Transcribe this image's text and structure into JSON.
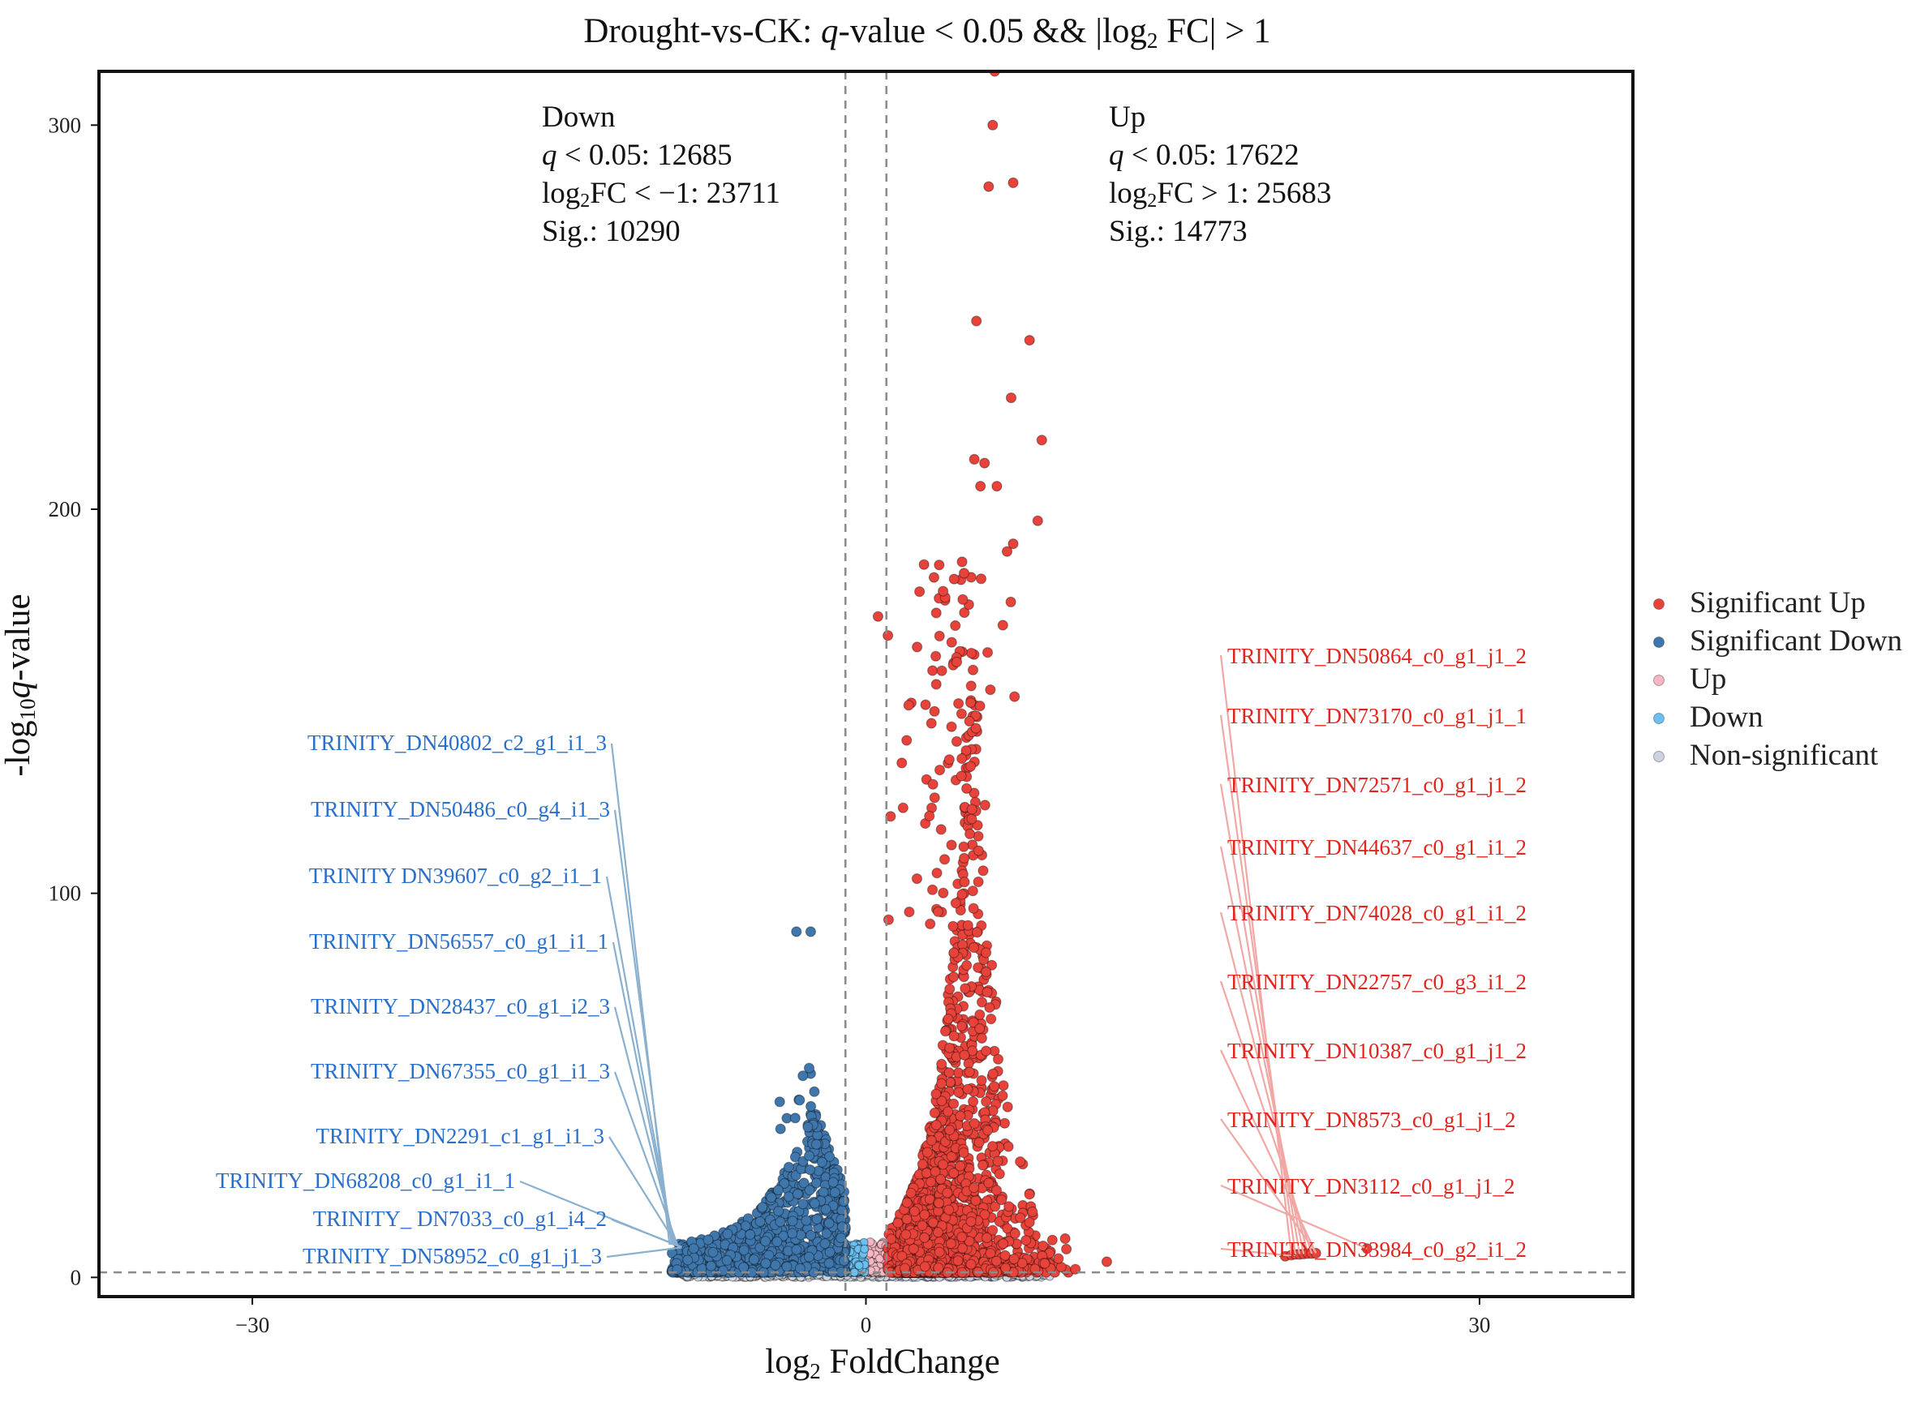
{
  "chart_data": {
    "type": "scatter",
    "title": {
      "prefix": "Drought-vs-CK: ",
      "q": "q",
      "mid": "-value < 0.05 && |log",
      "sub": "2",
      "suffix": " FC| > 1"
    },
    "xlabel": {
      "pre": "log",
      "sub": "2",
      "post": " FoldChange"
    },
    "ylabel": {
      "pre": "-log",
      "sub": "10",
      "q": "q",
      "post": "-value"
    },
    "xlim": [
      -37.5,
      37.5
    ],
    "ylim": [
      -5,
      314
    ],
    "xticks": [
      -30,
      0,
      30
    ],
    "yticks": [
      0,
      100,
      200,
      300
    ],
    "xtick_labels": [
      "−30",
      "0",
      "30"
    ],
    "ytick_labels": [
      "0",
      "100",
      "200",
      "300"
    ],
    "thresholds": {
      "log2fc": [
        -1,
        1
      ],
      "qvalue_line": 1.3
    },
    "down_annotation": {
      "line1": "Down",
      "line2_q": "q",
      "line2": " < 0.05: 12685",
      "line3_pre": "log",
      "line3_sub": "2",
      "line3": "FC < −1: 23711",
      "line4": "Sig.: 10290"
    },
    "up_annotation": {
      "line1": "Up",
      "line2_q": "q",
      "line2": " < 0.05: 17622",
      "line3_pre": "log",
      "line3_sub": "2",
      "line3": "FC > 1: 25683",
      "line4": "Sig.: 14773"
    },
    "legend": [
      {
        "label": "Significant Up",
        "color": "#e8433a"
      },
      {
        "label": "Significant Down",
        "color": "#3f77ac"
      },
      {
        "label": "Up",
        "color": "#f5b8c2"
      },
      {
        "label": "Down",
        "color": "#6cc0ef"
      },
      {
        "label": "Non-significant",
        "color": "#ccd3de"
      }
    ],
    "colors": {
      "sig_up": "#e8433a",
      "sig_down": "#3f77ac",
      "up": "#f5b8c2",
      "down": "#6cc0ef",
      "nonsig": "#ccd3de",
      "label_up": "#e0251f",
      "label_down": "#2a6fc9",
      "leader_up": "#f1a8a5",
      "leader_down": "#8ab0cf"
    },
    "highlight_points_up": [
      {
        "x": 6.3,
        "y": 314
      },
      {
        "x": 6.2,
        "y": 300
      },
      {
        "x": 7.2,
        "y": 285
      },
      {
        "x": 6.0,
        "y": 284
      },
      {
        "x": 5.4,
        "y": 249
      },
      {
        "x": 8.0,
        "y": 244
      },
      {
        "x": 7.1,
        "y": 229
      },
      {
        "x": 8.6,
        "y": 218
      },
      {
        "x": 5.3,
        "y": 213
      },
      {
        "x": 5.8,
        "y": 212
      },
      {
        "x": 8.4,
        "y": 197
      },
      {
        "x": 7.2,
        "y": 191
      },
      {
        "x": 5.6,
        "y": 206
      },
      {
        "x": 6.4,
        "y": 206
      },
      {
        "x": 6.9,
        "y": 189
      }
    ],
    "highlight_points_down": [
      {
        "x": -3.4,
        "y": 90
      },
      {
        "x": -2.7,
        "y": 90
      }
    ],
    "outliers_up": [
      {
        "x": 20.5,
        "y": 5.5
      },
      {
        "x": 20.8,
        "y": 5.8
      },
      {
        "x": 21.0,
        "y": 6.0
      },
      {
        "x": 21.2,
        "y": 6.0
      },
      {
        "x": 21.4,
        "y": 6.1
      },
      {
        "x": 21.6,
        "y": 6.2
      },
      {
        "x": 21.8,
        "y": 6.2
      },
      {
        "x": 22.0,
        "y": 6.3
      },
      {
        "x": 24.5,
        "y": 7.5
      }
    ],
    "up_labels": [
      {
        "text": "TRINITY_DN50864_c0_g1_j1_2",
        "x": 20.8,
        "y": 6.0
      },
      {
        "text": "TRINITY_DN73170_c0_g1_j1_1",
        "x": 21.0,
        "y": 6.0
      },
      {
        "text": "TRINITY_DN72571_c0_g1_j1_2",
        "x": 21.2,
        "y": 6.1
      },
      {
        "text": "TRINITY_DN44637_c0_g1_i1_2",
        "x": 21.4,
        "y": 6.1
      },
      {
        "text": "TRINITY_DN74028_c0_g1_i1_2",
        "x": 21.6,
        "y": 6.2
      },
      {
        "text": "TRINITY_DN22757_c0_g3_i1_2",
        "x": 21.8,
        "y": 6.2
      },
      {
        "text": "TRINITY_DN10387_c0_g1_j1_2",
        "x": 22.0,
        "y": 6.3
      },
      {
        "text": "TRINITY_DN8573_c0_g1_j1_2",
        "x": 22.0,
        "y": 6.5
      },
      {
        "text": "TRINITY_DN3112_c0_g1_j1_2",
        "x": 24.5,
        "y": 7.5
      },
      {
        "text": "TRINITY_DN33984_c0_g2_i1_2",
        "x": 21.0,
        "y": 5.5
      }
    ],
    "down_labels": [
      {
        "text": "TRINITY_DN40802_c2_g1_i1_3",
        "x": -9.6,
        "y": 8.5
      },
      {
        "text": "TRINITY_DN50486_c0_g4_i1_3",
        "x": -9.5,
        "y": 8.5
      },
      {
        "text": "TRINITY DN39607_c0_g2_i1_1",
        "x": -9.4,
        "y": 8.4
      },
      {
        "text": "TRINITY_DN56557_c0_g1_i1_1",
        "x": -9.4,
        "y": 8.3
      },
      {
        "text": "TRINITY_DN28437_c0_g1_i2_3",
        "x": -9.3,
        "y": 8.3
      },
      {
        "text": "TRINITY_DN67355_c0_g1_i1_3",
        "x": -9.2,
        "y": 8.2
      },
      {
        "text": "TRINITY_DN2291_c1_g1_i1_3",
        "x": -9.2,
        "y": 8.1
      },
      {
        "text": "TRINITY_DN68208_c0_g1_i1_1",
        "x": -9.1,
        "y": 8.0
      },
      {
        "text": "TRINITY_ DN7033_c0_g1_i4_2",
        "x": -9.0,
        "y": 7.9
      },
      {
        "text": "TRINITY_DN58952_c0_g1_j1_3",
        "x": -9.0,
        "y": 7.8
      }
    ]
  }
}
